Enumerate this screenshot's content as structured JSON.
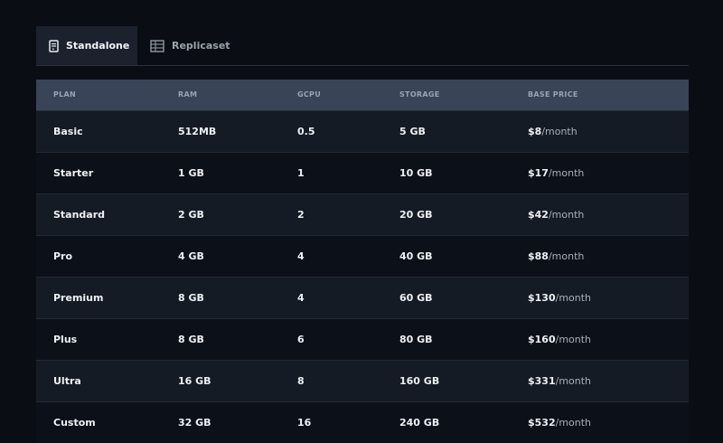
{
  "tabs": [
    {
      "label": "Standalone",
      "icon": "server-icon",
      "active": true
    },
    {
      "label": "Replicaset",
      "icon": "server-rack-icon",
      "active": false
    }
  ],
  "table": {
    "columns": [
      "PLAN",
      "RAM",
      "GCPU",
      "STORAGE",
      "BASE PRICE"
    ],
    "price_unit": "/month",
    "rows": [
      {
        "plan": "Basic",
        "ram": "512MB",
        "gcpu": "0.5",
        "storage": "5 GB",
        "price": "$8"
      },
      {
        "plan": "Starter",
        "ram": "1 GB",
        "gcpu": "1",
        "storage": "10 GB",
        "price": "$17"
      },
      {
        "plan": "Standard",
        "ram": "2 GB",
        "gcpu": "2",
        "storage": "20 GB",
        "price": "$42"
      },
      {
        "plan": "Pro",
        "ram": "4 GB",
        "gcpu": "4",
        "storage": "40 GB",
        "price": "$88"
      },
      {
        "plan": "Premium",
        "ram": "8 GB",
        "gcpu": "4",
        "storage": "60 GB",
        "price": "$130"
      },
      {
        "plan": "Plus",
        "ram": "8 GB",
        "gcpu": "6",
        "storage": "80 GB",
        "price": "$160"
      },
      {
        "plan": "Ultra",
        "ram": "16 GB",
        "gcpu": "8",
        "storage": "160 GB",
        "price": "$331"
      },
      {
        "plan": "Custom",
        "ram": "32 GB",
        "gcpu": "16",
        "storage": "240 GB",
        "price": "$532"
      }
    ]
  },
  "colors": {
    "background": "#0a0d14",
    "header": "#394458",
    "active_tab": "#1b222e"
  }
}
